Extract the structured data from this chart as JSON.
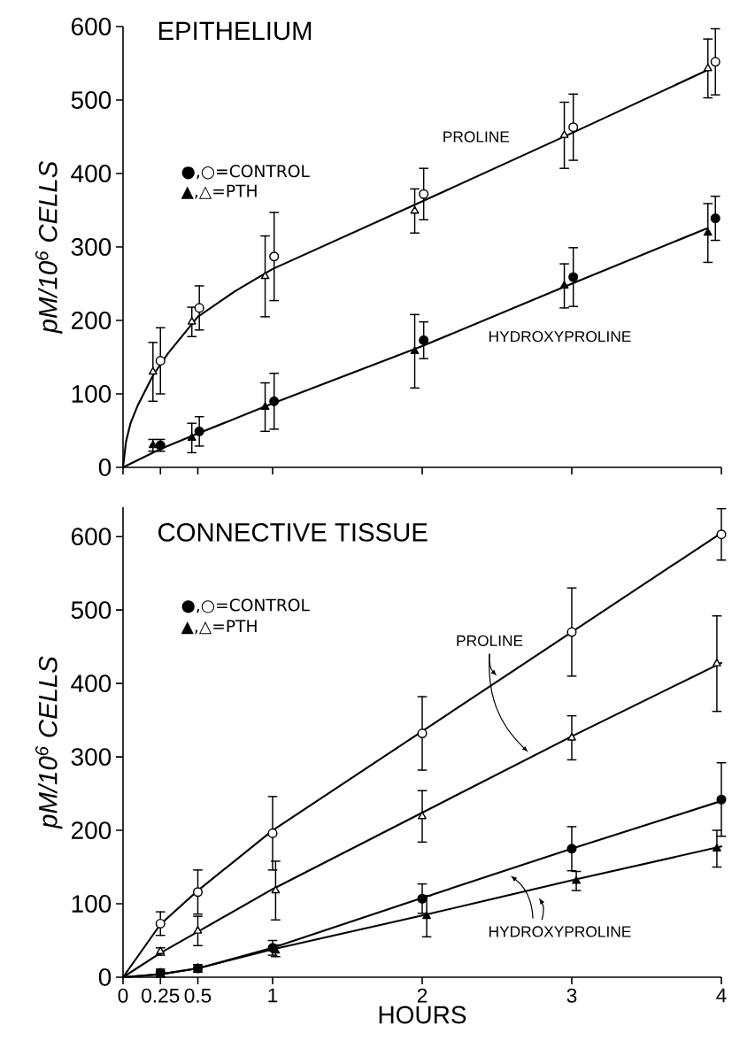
{
  "chart_data": [
    {
      "type": "scatter",
      "title": "EPITHELIUM",
      "ylabel": "pM/10$^{6}$ CELLS",
      "xlim": [
        0,
        4
      ],
      "ylim": [
        0,
        600
      ],
      "xticks": [
        0,
        0.25,
        0.5,
        1,
        2,
        3,
        4
      ],
      "yticks": [
        0,
        100,
        200,
        300,
        400,
        500,
        600
      ],
      "tick_labels": "y",
      "annotations": [
        "●,○=CONTROL",
        "▲,△=PTH",
        "PROLINE",
        "HYDROXYPROLINE"
      ],
      "series": [
        {
          "marker": "circle",
          "color": "#000000",
          "x": [
            0.25,
            0.51,
            1.01,
            2.01,
            3.01,
            3.96
          ],
          "values": [
            145,
            217,
            287,
            372,
            463,
            552
          ],
          "errors": [
            45,
            30,
            60,
            35,
            45,
            45
          ]
        },
        {
          "marker": "triangle",
          "color": "#000000",
          "x": [
            0.2,
            0.46,
            0.95,
            1.95,
            2.95,
            3.91
          ],
          "values": [
            130,
            198,
            260,
            349,
            452,
            543
          ],
          "errors": [
            40,
            20,
            55,
            30,
            45,
            40
          ]
        },
        {
          "marker": "circle",
          "color": "#000000",
          "x": [
            0.25,
            0.51,
            1.01,
            2.01,
            3.01,
            3.96
          ],
          "values": [
            30,
            49,
            90,
            173,
            259,
            339
          ],
          "errors": [
            8,
            20,
            38,
            25,
            40,
            30
          ]
        },
        {
          "marker": "triangle",
          "color": "#000000",
          "x": [
            0.2,
            0.46,
            0.95,
            1.95,
            2.95,
            3.91
          ],
          "values": [
            30,
            40,
            82,
            158,
            247,
            319
          ],
          "errors": [
            8,
            20,
            33,
            50,
            30,
            40
          ]
        },
        {
          "type": "line",
          "marker": "none",
          "line_style": "solid",
          "color": "#000000",
          "x": [
            0,
            0.02,
            0.05,
            0.1,
            0.2,
            0.3,
            0.5,
            0.75,
            1,
            2,
            3,
            3.9
          ],
          "values": [
            0,
            35,
            60,
            85,
            125,
            155,
            205,
            240,
            270,
            362,
            455,
            540
          ]
        },
        {
          "type": "line",
          "marker": "none",
          "line_style": "solid",
          "color": "#000000",
          "x": [
            0,
            0.25,
            0.5,
            1,
            2,
            3,
            3.9
          ],
          "values": [
            0,
            25,
            46,
            87,
            165,
            250,
            325
          ]
        }
      ]
    },
    {
      "type": "scatter",
      "title": "CONNECTIVE TISSUE",
      "xlabel": "HOURS",
      "ylabel": "pM/10$^{6}$ CELLS",
      "xlim": [
        0,
        4
      ],
      "ylim": [
        0,
        640
      ],
      "xticks": [
        0,
        0.25,
        0.5,
        1,
        2,
        3,
        4
      ],
      "yticks": [
        0,
        100,
        200,
        300,
        400,
        500,
        600
      ],
      "annotations": [
        "●,○=CONTROL",
        "▲,△=PTH",
        "PROLINE",
        "HYDROXYPROLINE"
      ],
      "series": [
        {
          "marker": "circle",
          "color": "#000000",
          "x": [
            0.25,
            0.5,
            1,
            2,
            3,
            4
          ],
          "values": [
            73,
            116,
            196,
            332,
            470,
            603
          ],
          "errors": [
            16,
            30,
            50,
            50,
            60,
            35
          ]
        },
        {
          "marker": "triangle",
          "color": "#000000",
          "x": [
            0.25,
            0.5,
            1.02,
            2,
            3,
            3.97
          ],
          "values": [
            35,
            63,
            118,
            219,
            326,
            427
          ],
          "errors": [
            5,
            20,
            40,
            35,
            30,
            65
          ]
        },
        {
          "marker": "circle",
          "color": "#000000",
          "x": [
            0.25,
            0.5,
            1,
            2,
            3,
            4
          ],
          "values": [
            6,
            12,
            40,
            107,
            175,
            242
          ],
          "errors": [
            5,
            5,
            10,
            20,
            30,
            50
          ]
        },
        {
          "marker": "triangle",
          "color": "#000000",
          "x": [
            0.25,
            0.5,
            1.02,
            2.03,
            3.03,
            3.97
          ],
          "values": [
            4,
            12,
            36,
            83,
            131,
            175
          ],
          "errors": [
            4,
            5,
            8,
            28,
            13,
            25
          ]
        },
        {
          "type": "line",
          "marker": "none",
          "line_style": "solid",
          "color": "#000000",
          "x": [
            0,
            0.25,
            0.5,
            1,
            2,
            3,
            4
          ],
          "values": [
            0,
            72,
            118,
            200,
            335,
            470,
            605
          ]
        },
        {
          "type": "line",
          "marker": "none",
          "line_style": "solid",
          "color": "#000000",
          "x": [
            0,
            0.25,
            0.5,
            1,
            2,
            3,
            4
          ],
          "values": [
            0,
            33,
            62,
            120,
            224,
            328,
            428
          ]
        },
        {
          "type": "line",
          "marker": "none",
          "line_style": "solid",
          "color": "#000000",
          "x": [
            0,
            0.25,
            0.5,
            1,
            2,
            3,
            4
          ],
          "values": [
            0,
            4,
            12,
            40,
            108,
            175,
            240
          ]
        },
        {
          "type": "line",
          "marker": "none",
          "line_style": "solid",
          "color": "#000000",
          "x": [
            0,
            0.25,
            0.5,
            1,
            2,
            3,
            4
          ],
          "values": [
            0,
            4,
            12,
            38,
            84,
            132,
            178
          ]
        }
      ]
    }
  ]
}
